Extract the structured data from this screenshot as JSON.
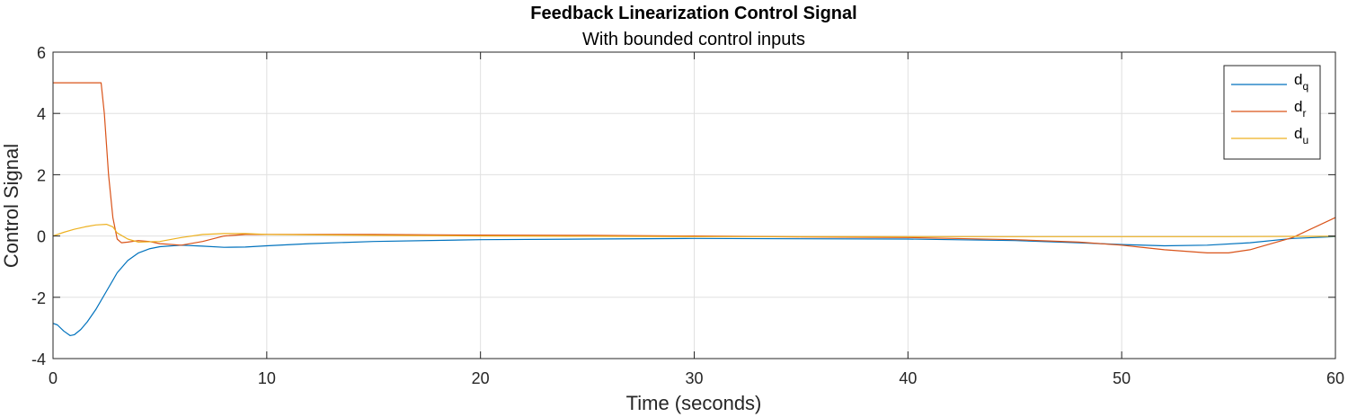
{
  "chart_data": {
    "type": "line",
    "title": "Feedback Linearization Control Signal",
    "subtitle": "With bounded control inputs",
    "xlabel": "Time (seconds)",
    "ylabel": "Control Signal",
    "xlim": [
      0,
      60
    ],
    "ylim": [
      -4,
      6
    ],
    "xticks": [
      0,
      10,
      20,
      30,
      40,
      50,
      60
    ],
    "yticks": [
      -4,
      -2,
      0,
      2,
      4,
      6
    ],
    "grid": true,
    "legend_position": "top-right",
    "series": [
      {
        "name": "d",
        "subscript": "q",
        "color": "#0072BD",
        "x": [
          0,
          0.2,
          0.5,
          0.8,
          1.0,
          1.3,
          1.6,
          2.0,
          2.5,
          3.0,
          3.5,
          4.0,
          4.5,
          5.0,
          6.0,
          7.0,
          8.0,
          9.0,
          10.0,
          12.0,
          15.0,
          20.0,
          25.0,
          30.0,
          35.0,
          40.0,
          45.0,
          48.0,
          50.0,
          52.0,
          54.0,
          56.0,
          58.0,
          60.0
        ],
        "y": [
          -2.85,
          -2.9,
          -3.1,
          -3.25,
          -3.22,
          -3.05,
          -2.8,
          -2.4,
          -1.8,
          -1.2,
          -0.8,
          -0.55,
          -0.42,
          -0.35,
          -0.3,
          -0.33,
          -0.37,
          -0.36,
          -0.32,
          -0.25,
          -0.18,
          -0.12,
          -0.1,
          -0.08,
          -0.09,
          -0.1,
          -0.15,
          -0.22,
          -0.28,
          -0.32,
          -0.3,
          -0.22,
          -0.08,
          -0.02
        ]
      },
      {
        "name": "d",
        "subscript": "r",
        "color": "#D95319",
        "x": [
          0,
          0.5,
          1.0,
          1.5,
          2.0,
          2.25,
          2.4,
          2.6,
          2.8,
          3.0,
          3.2,
          3.5,
          4.0,
          4.5,
          5.0,
          6.0,
          7.0,
          8.0,
          9.0,
          10.0,
          15.0,
          20.0,
          25.0,
          30.0,
          35.0,
          40.0,
          45.0,
          48.0,
          50.0,
          52.0,
          54.0,
          55.0,
          56.0,
          58.0,
          60.0
        ],
        "y": [
          5,
          5,
          5,
          5,
          5,
          5,
          4.0,
          2.0,
          0.6,
          -0.1,
          -0.22,
          -0.2,
          -0.15,
          -0.18,
          -0.25,
          -0.3,
          -0.18,
          0.0,
          0.05,
          0.05,
          0.05,
          0.03,
          0.02,
          0.0,
          -0.03,
          -0.05,
          -0.12,
          -0.2,
          -0.3,
          -0.45,
          -0.55,
          -0.55,
          -0.45,
          -0.05,
          0.6
        ]
      },
      {
        "name": "d",
        "subscript": "u",
        "color": "#EDB120",
        "x": [
          0,
          0.5,
          1.0,
          1.5,
          2.0,
          2.5,
          2.8,
          3.0,
          3.5,
          4.0,
          5.0,
          6.0,
          7.0,
          8.0,
          9.0,
          10.0,
          15.0,
          20.0,
          25.0,
          30.0,
          35.0,
          40.0,
          45.0,
          50.0,
          55.0,
          60.0
        ],
        "y": [
          0,
          0.12,
          0.22,
          0.3,
          0.36,
          0.38,
          0.3,
          0.1,
          -0.1,
          -0.2,
          -0.18,
          -0.05,
          0.05,
          0.08,
          0.08,
          0.05,
          0.02,
          0.0,
          -0.01,
          -0.02,
          -0.02,
          -0.02,
          -0.02,
          -0.02,
          -0.02,
          -0.01
        ]
      }
    ]
  }
}
